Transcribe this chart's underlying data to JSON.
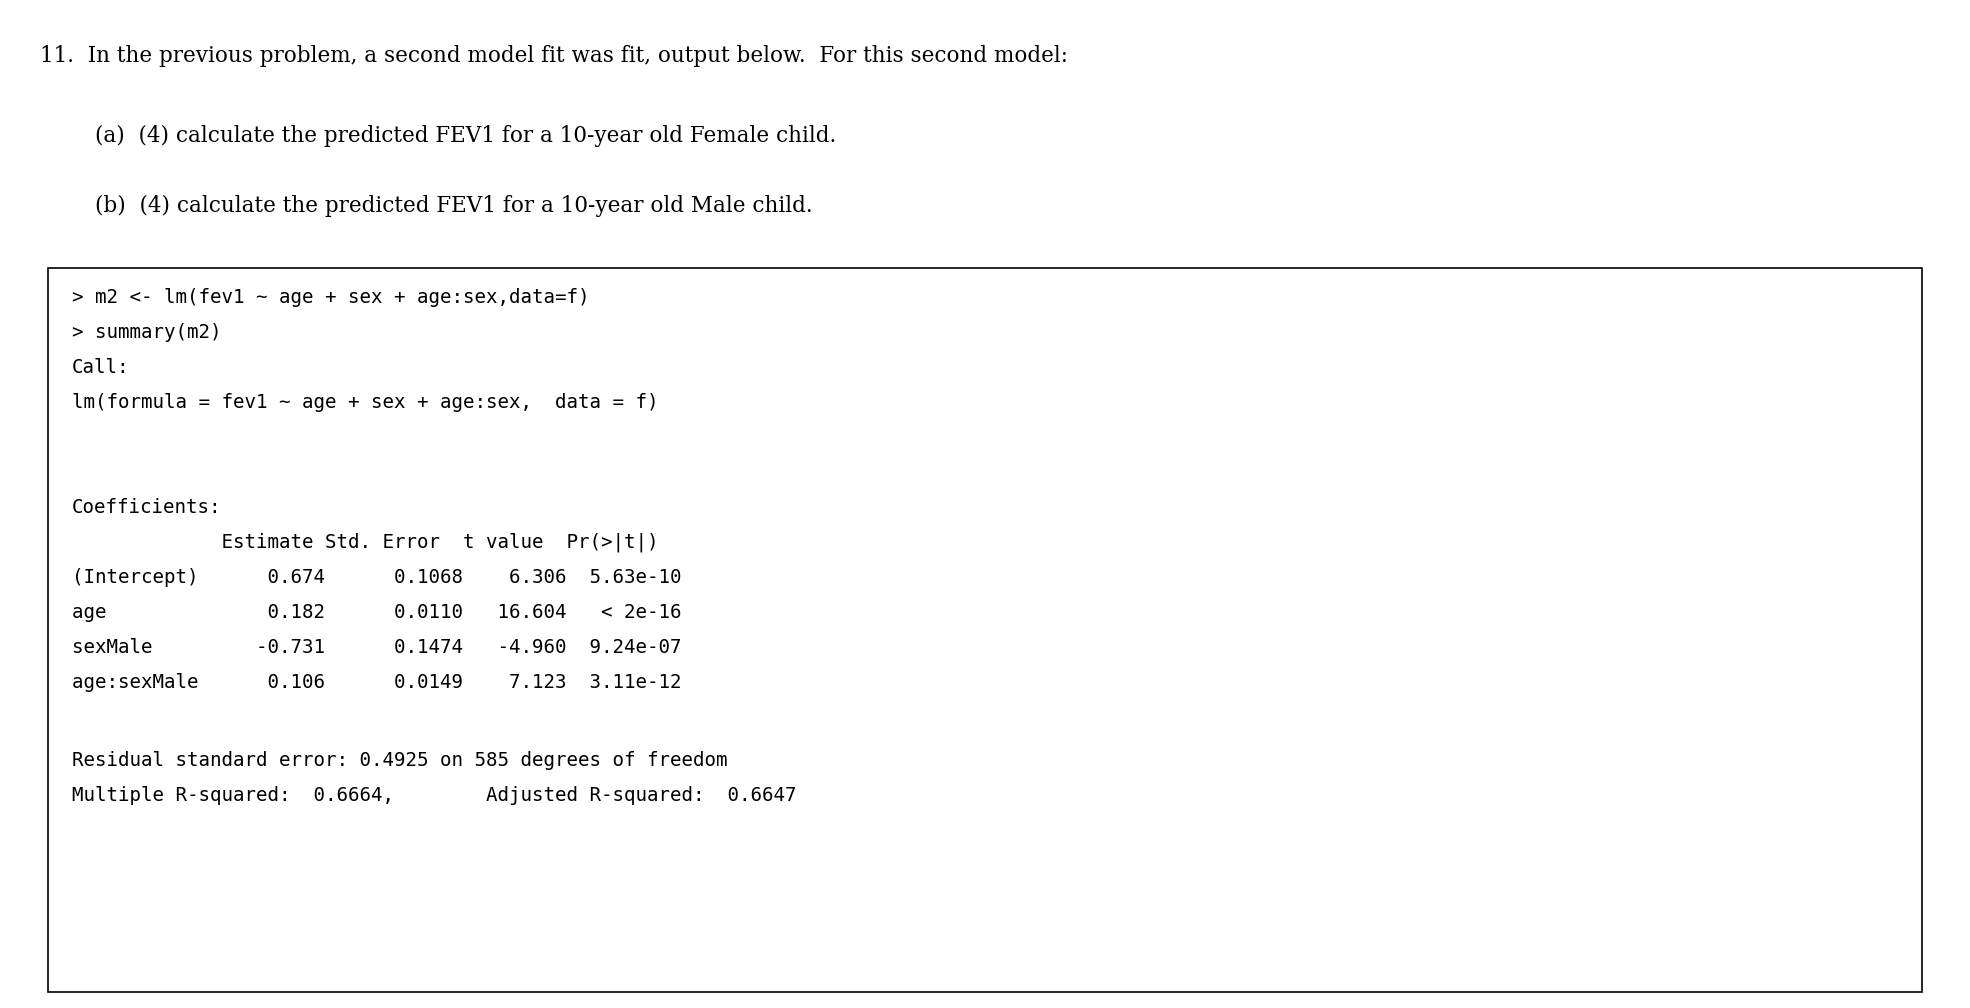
{
  "bg_color": "#ffffff",
  "text_color": "#000000",
  "header_text": "11.  In the previous problem, a second model fit was fit, output below.  For this second model:",
  "sub_a": "(a)  (4) calculate the predicted FEV1 for a 10-year old Female child.",
  "sub_b": "(b)  (4) calculate the predicted FEV1 for a 10-year old Male child.",
  "line1": "> m2 <- lm(fev1 ~ age + sex + age:sex,data=f)",
  "line2": "> summary(m2)",
  "line3": "Call:",
  "line4": "lm(formula = fev1 ~ age + sex + age:sex,  data = f)",
  "coeff_header": "             Estimate Std. Error  t value  Pr(>|t|)",
  "coeff_rows": [
    "(Intercept)      0.674      0.1068    6.306  5.63e-10",
    "age              0.182      0.0110   16.604   < 2e-16",
    "sexMale         -0.731      0.1474   -4.960  9.24e-07",
    "age:sexMale      0.106      0.0149    7.123  3.11e-12"
  ],
  "residual_line": "Residual standard error: 0.4925 on 585 degrees of freedom",
  "rsquared_line": "Multiple R-squared:  0.6664,        Adjusted R-squared:  0.6647",
  "coefficients_label": "Coefficients:",
  "header_fontsize": 15.5,
  "sub_fontsize": 15.5,
  "mono_fontsize": 13.8,
  "figsize": [
    19.7,
    10.08
  ],
  "dpi": 100
}
